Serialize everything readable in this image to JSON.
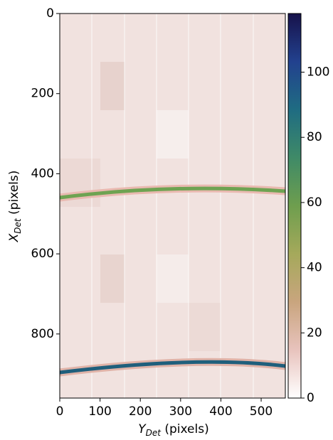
{
  "chart_data": {
    "type": "image",
    "x_label": {
      "symbol": "Y",
      "sub": "Det",
      "unit": "(pixels)"
    },
    "y_label": {
      "symbol": "X",
      "sub": "Det",
      "unit": "(pixels)"
    },
    "xlim": [
      0,
      560
    ],
    "xticks": [
      0,
      100,
      200,
      300,
      400,
      500
    ],
    "ylim": [
      0,
      960
    ],
    "yticks": [
      0,
      200,
      400,
      600,
      800
    ],
    "clim": [
      0,
      118
    ],
    "cticks": [
      0,
      20,
      40,
      60,
      80,
      100
    ],
    "colormap": [
      "#ffffff",
      "#e8c3bd",
      "#c9a57e",
      "#a5a95b",
      "#6e9e4e",
      "#3f8a67",
      "#1f6c82",
      "#22418e",
      "#17124a"
    ],
    "y_inverted": true
  }
}
